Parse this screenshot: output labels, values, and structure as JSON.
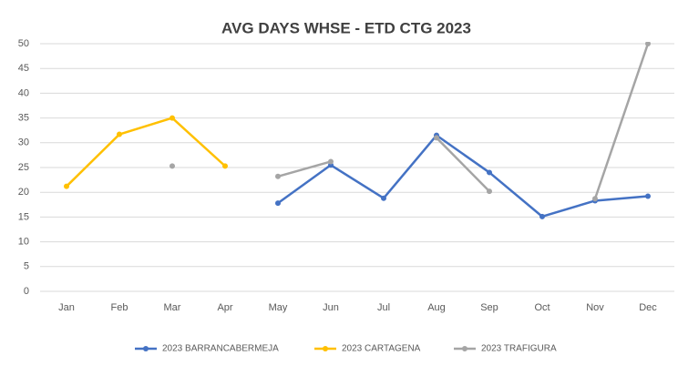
{
  "chart_data": {
    "type": "line",
    "title": "AVG DAYS WHSE - ETD CTG 2023",
    "categories": [
      "Jan",
      "Feb",
      "Mar",
      "Apr",
      "May",
      "Jun",
      "Jul",
      "Aug",
      "Sep",
      "Oct",
      "Nov",
      "Dec"
    ],
    "series": [
      {
        "name": "2023 BARRANCABERMEJA",
        "color": "#4472c4",
        "values": [
          null,
          null,
          null,
          null,
          17.8,
          25.5,
          18.8,
          31.5,
          24,
          15.1,
          18.3,
          19.2
        ]
      },
      {
        "name": "2023 CARTAGENA",
        "color": "#ffc000",
        "values": [
          21.2,
          31.7,
          35,
          25.3,
          null,
          null,
          null,
          null,
          null,
          null,
          null,
          null
        ]
      },
      {
        "name": "2023 TRAFIGURA",
        "color": "#a5a5a5",
        "values": [
          null,
          null,
          25.3,
          null,
          23.2,
          26.2,
          null,
          31,
          20.2,
          null,
          18.7,
          50
        ]
      }
    ],
    "ylim": [
      0,
      50
    ],
    "yticks": [
      0,
      5,
      10,
      15,
      20,
      25,
      30,
      35,
      40,
      45,
      50
    ],
    "grid": true,
    "legend": "bottom"
  }
}
